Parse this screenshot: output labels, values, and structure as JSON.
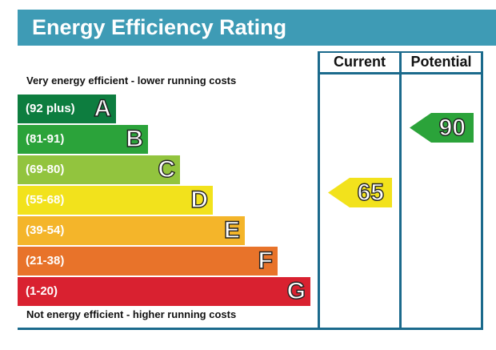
{
  "title": "Energy Efficiency Rating",
  "columns": {
    "current": "Current",
    "potential": "Potential"
  },
  "notes": {
    "top": "Very energy efficient - lower running costs",
    "bottom": "Not energy efficient - higher running costs"
  },
  "bands": [
    {
      "letter": "A",
      "range": "(92 plus)",
      "color": "#0d7d3f"
    },
    {
      "letter": "B",
      "range": "(81-91)",
      "color": "#2ba33a"
    },
    {
      "letter": "C",
      "range": "(69-80)",
      "color": "#92c43e"
    },
    {
      "letter": "D",
      "range": "(55-68)",
      "color": "#f2e21c"
    },
    {
      "letter": "E",
      "range": "(39-54)",
      "color": "#f4b52a"
    },
    {
      "letter": "F",
      "range": "(21-38)",
      "color": "#e8732a"
    },
    {
      "letter": "G",
      "range": "(1-20)",
      "color": "#d92130"
    }
  ],
  "ratings": {
    "current": {
      "value": "65",
      "band": "D",
      "color": "#f2e21c"
    },
    "potential": {
      "value": "90",
      "band": "B",
      "color": "#2ba33a"
    }
  }
}
